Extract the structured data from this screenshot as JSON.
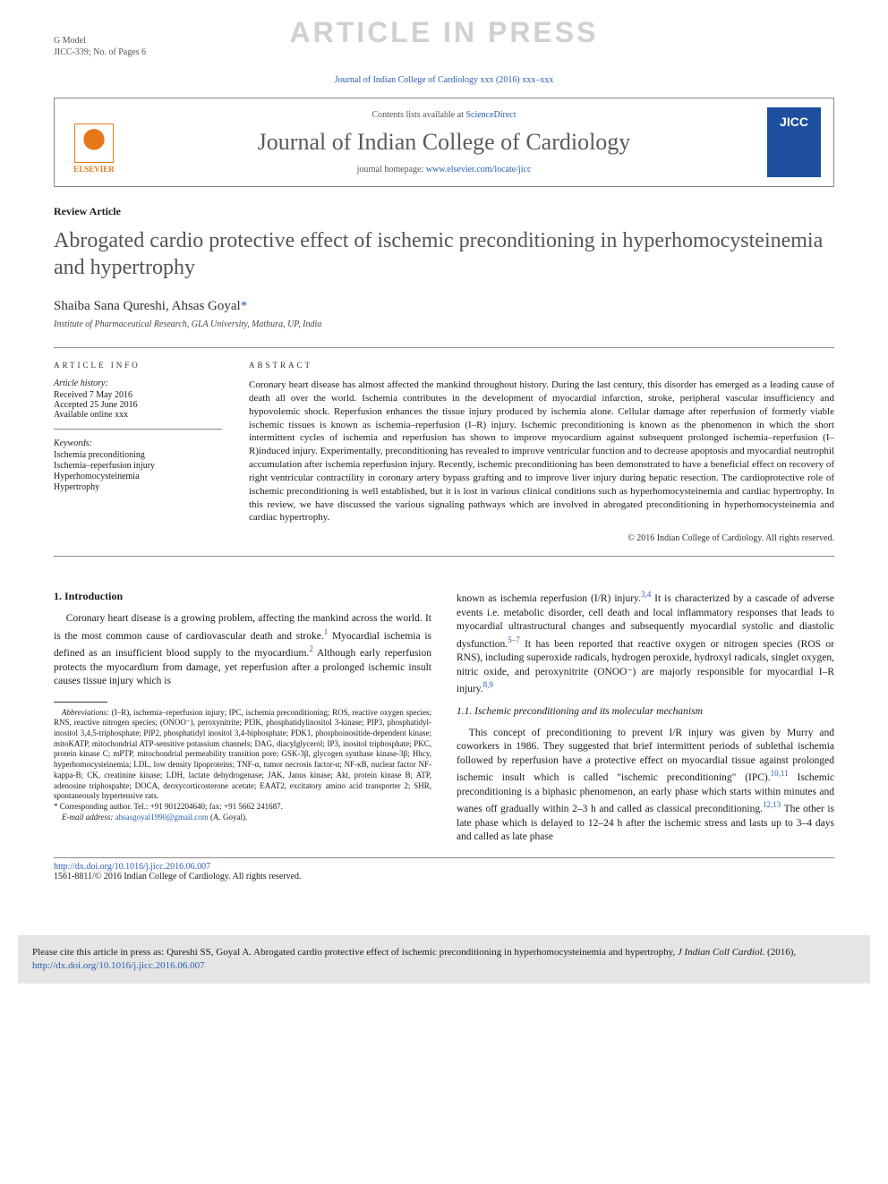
{
  "gmodel": "G Model",
  "docid": "JICC-339; No. of Pages 6",
  "watermark": "ARTICLE IN PRESS",
  "citation_top": "Journal of Indian College of Cardiology xxx (2016) xxx–xxx",
  "header": {
    "contents_prefix": "Contents lists available at ",
    "contents_link": "ScienceDirect",
    "journal": "Journal of Indian College of Cardiology",
    "homepage_prefix": "journal homepage: ",
    "homepage_link": "www.elsevier.com/locate/jicc",
    "elsevier_label": "ELSEVIER",
    "cover_text": "JICC"
  },
  "article_type": "Review Article",
  "title": "Abrogated cardio protective effect of ischemic preconditioning in hyperhomocysteinemia and hypertrophy",
  "authors": "Shaiba Sana Qureshi, Ahsas Goyal",
  "author_star": "*",
  "affiliation": "Institute of Pharmaceutical Research, GLA University, Mathura, UP, India",
  "info": {
    "heading": "ARTICLE INFO",
    "history_label": "Article history:",
    "received": "Received 7 May 2016",
    "accepted": "Accepted 25 June 2016",
    "online": "Available online xxx",
    "keywords_label": "Keywords:",
    "keywords": [
      "Ischemia preconditioning",
      "Ischemia–reperfusion injury",
      "Hyperhomocysteinemia",
      "Hypertrophy"
    ]
  },
  "abstract": {
    "heading": "ABSTRACT",
    "text": "Coronary heart disease has almost affected the mankind throughout history. During the last century, this disorder has emerged as a leading cause of death all over the world. Ischemia contributes in the development of myocardial infarction, stroke, peripheral vascular insufficiency and hypovolemic shock. Reperfusion enhances the tissue injury produced by ischemia alone. Cellular damage after reperfusion of formerly viable ischemic tissues is known as ischemia–reperfusion (I–R) injury. Ischemic preconditioning is known as the phenomenon in which the short intermittent cycles of ischemia and reperfusion has shown to improve myocardium against subsequent prolonged ischemia–reperfusion (I–R)induced injury. Experimentally, preconditioning has revealed to improve ventricular function and to decrease apoptosis and myocardial neutrophil accumulation after ischemia reperfusion injury. Recently, ischemic preconditioning has been demonstrated to have a beneficial effect on recovery of right ventricular contractility in coronary artery bypass grafting and to improve liver injury during hepatic resection. The cardioprotective role of ischemic preconditioning is well established, but it is lost in various clinical conditions such as hyperhomocysteinemia and cardiac hypertrophy. In this review, we have discussed the various signaling pathways which are involved in abrogated preconditioning in hyperhomocysteinemia and cardiac hypertrophy.",
    "copyright": "© 2016 Indian College of Cardiology. All rights reserved."
  },
  "body": {
    "sec1": "1.  Introduction",
    "p1a": "Coronary heart disease is a growing problem, affecting the mankind across the world. It is the most common cause of cardiovascular death and stroke.",
    "p1b": " Myocardial ischemia is defined as an insufficient blood supply to the myocardium.",
    "p1c": " Although early reperfusion protects the myocardium from damage, yet reperfusion after a prolonged ischemic insult causes tissue injury which is ",
    "p2a": "known as ischemia reperfusion (I/R) injury.",
    "p2b": " It is characterized by a cascade of adverse events i.e. metabolic disorder, cell death and local inflammatory responses that leads to myocardial ultrastructural changes and subsequently myocardial systolic and diastolic dysfunction.",
    "p2c": " It has been reported that reactive oxygen or nitrogen species (ROS or RNS), including superoxide radicals, hydrogen peroxide, hydroxyl radicals, singlet oxygen, nitric oxide, and peroxynitrite (ONOO⁻) are majorly responsible for myocardial I–R injury.",
    "sec11": "1.1. Ischemic preconditioning and its molecular mechanism",
    "p3a": "This concept of preconditioning to prevent I/R injury was given by Murry and coworkers in 1986. They suggested that brief intermittent periods of sublethal ischemia followed by reperfusion have a protective effect on myocardial tissue against prolonged ischemic insult which is called \"ischemic preconditioning\" (IPC).",
    "p3b": " Ischemic preconditioning is a biphasic phenomenon, an early phase which starts within minutes and wanes off gradually within 2–3 h and called as classical preconditioning.",
    "p3c": " The other is late phase which is delayed to 12–24 h after the ischemic stress and lasts up to 3–4 days and called as late phase",
    "ref1": "1",
    "ref2": "2",
    "ref34": "3,4",
    "ref57": "5–7",
    "ref89": "8,9",
    "ref1011": "10,11",
    "ref1213": "12,13"
  },
  "footnotes": {
    "abbrev_label": "Abbreviations:",
    "abbrev_text": " (I–R), ischemia–reperfusion injury; IPC, ischemia preconditioning; ROS, reactive oxygen species; RNS, reactive nitrogen species; (ONOO⁻), peroxynitrite; PI3K, phosphatidylinositol 3-kinase; PIP3, phosphatidyl-inositol 3,4,5-triphosphate; PIP2, phosphatidyl inositol 3,4-biphosphate; PDK1, phosphoinositide-dependent kinase; mitoKATP, mitochondrial ATP-sensitive potassium channels; DAG, diacylglycerol; IP3, inositol triphosphate; PKC, protein kinase C; mPTP, mitochondrial permeability transition pore; GSK-3β, glycogen synthase kinase-3β; Hhcy, hyperhomocysteinemia; LDL, low density lipoproteins; TNF-α, tumor necrosis factor-α; NF-κB, nuclear factor NF-kappa-B; CK, creatinine kinase; LDH, lactate dehydrogenase; JAK, Janus kinase; Akt, protein kinase B; ATP, adenosine triphospahte; DOCA, deoxycorticosterone acetate; EAAT2, excitatory amino acid transporter 2; SHR, spontaneously hypertensive rats.",
    "corr_label": "* Corresponding author. Tel.: +91 9012204640; fax: +91 5662 241687.",
    "email_label": "E-mail address: ",
    "email": "ahsasgoyal1990@gmail.com",
    "email_suffix": " (A. Goyal)."
  },
  "bottom": {
    "doi": "http://dx.doi.org/10.1016/j.jicc.2016.06.007",
    "issn_line": "1561-8811/© 2016 Indian College of Cardiology. All rights reserved."
  },
  "citebox": {
    "text_a": "Please cite this article in press as: Qureshi  SS, Goyal  A. Abrogated cardio protective effect of ischemic preconditioning in hyperhomocysteinemia and hypertrophy, ",
    "text_b": "J Indian Coll Cardiol.",
    "text_c": " (2016), ",
    "link": "http://dx.doi.org/10.1016/j.jicc.2016.06.007"
  },
  "colors": {
    "link": "#2a5db0",
    "elsevier": "#e67817",
    "cover": "#1e4f9e",
    "watermark": "#d0d0d0",
    "citebox_bg": "#e5e5e5"
  }
}
